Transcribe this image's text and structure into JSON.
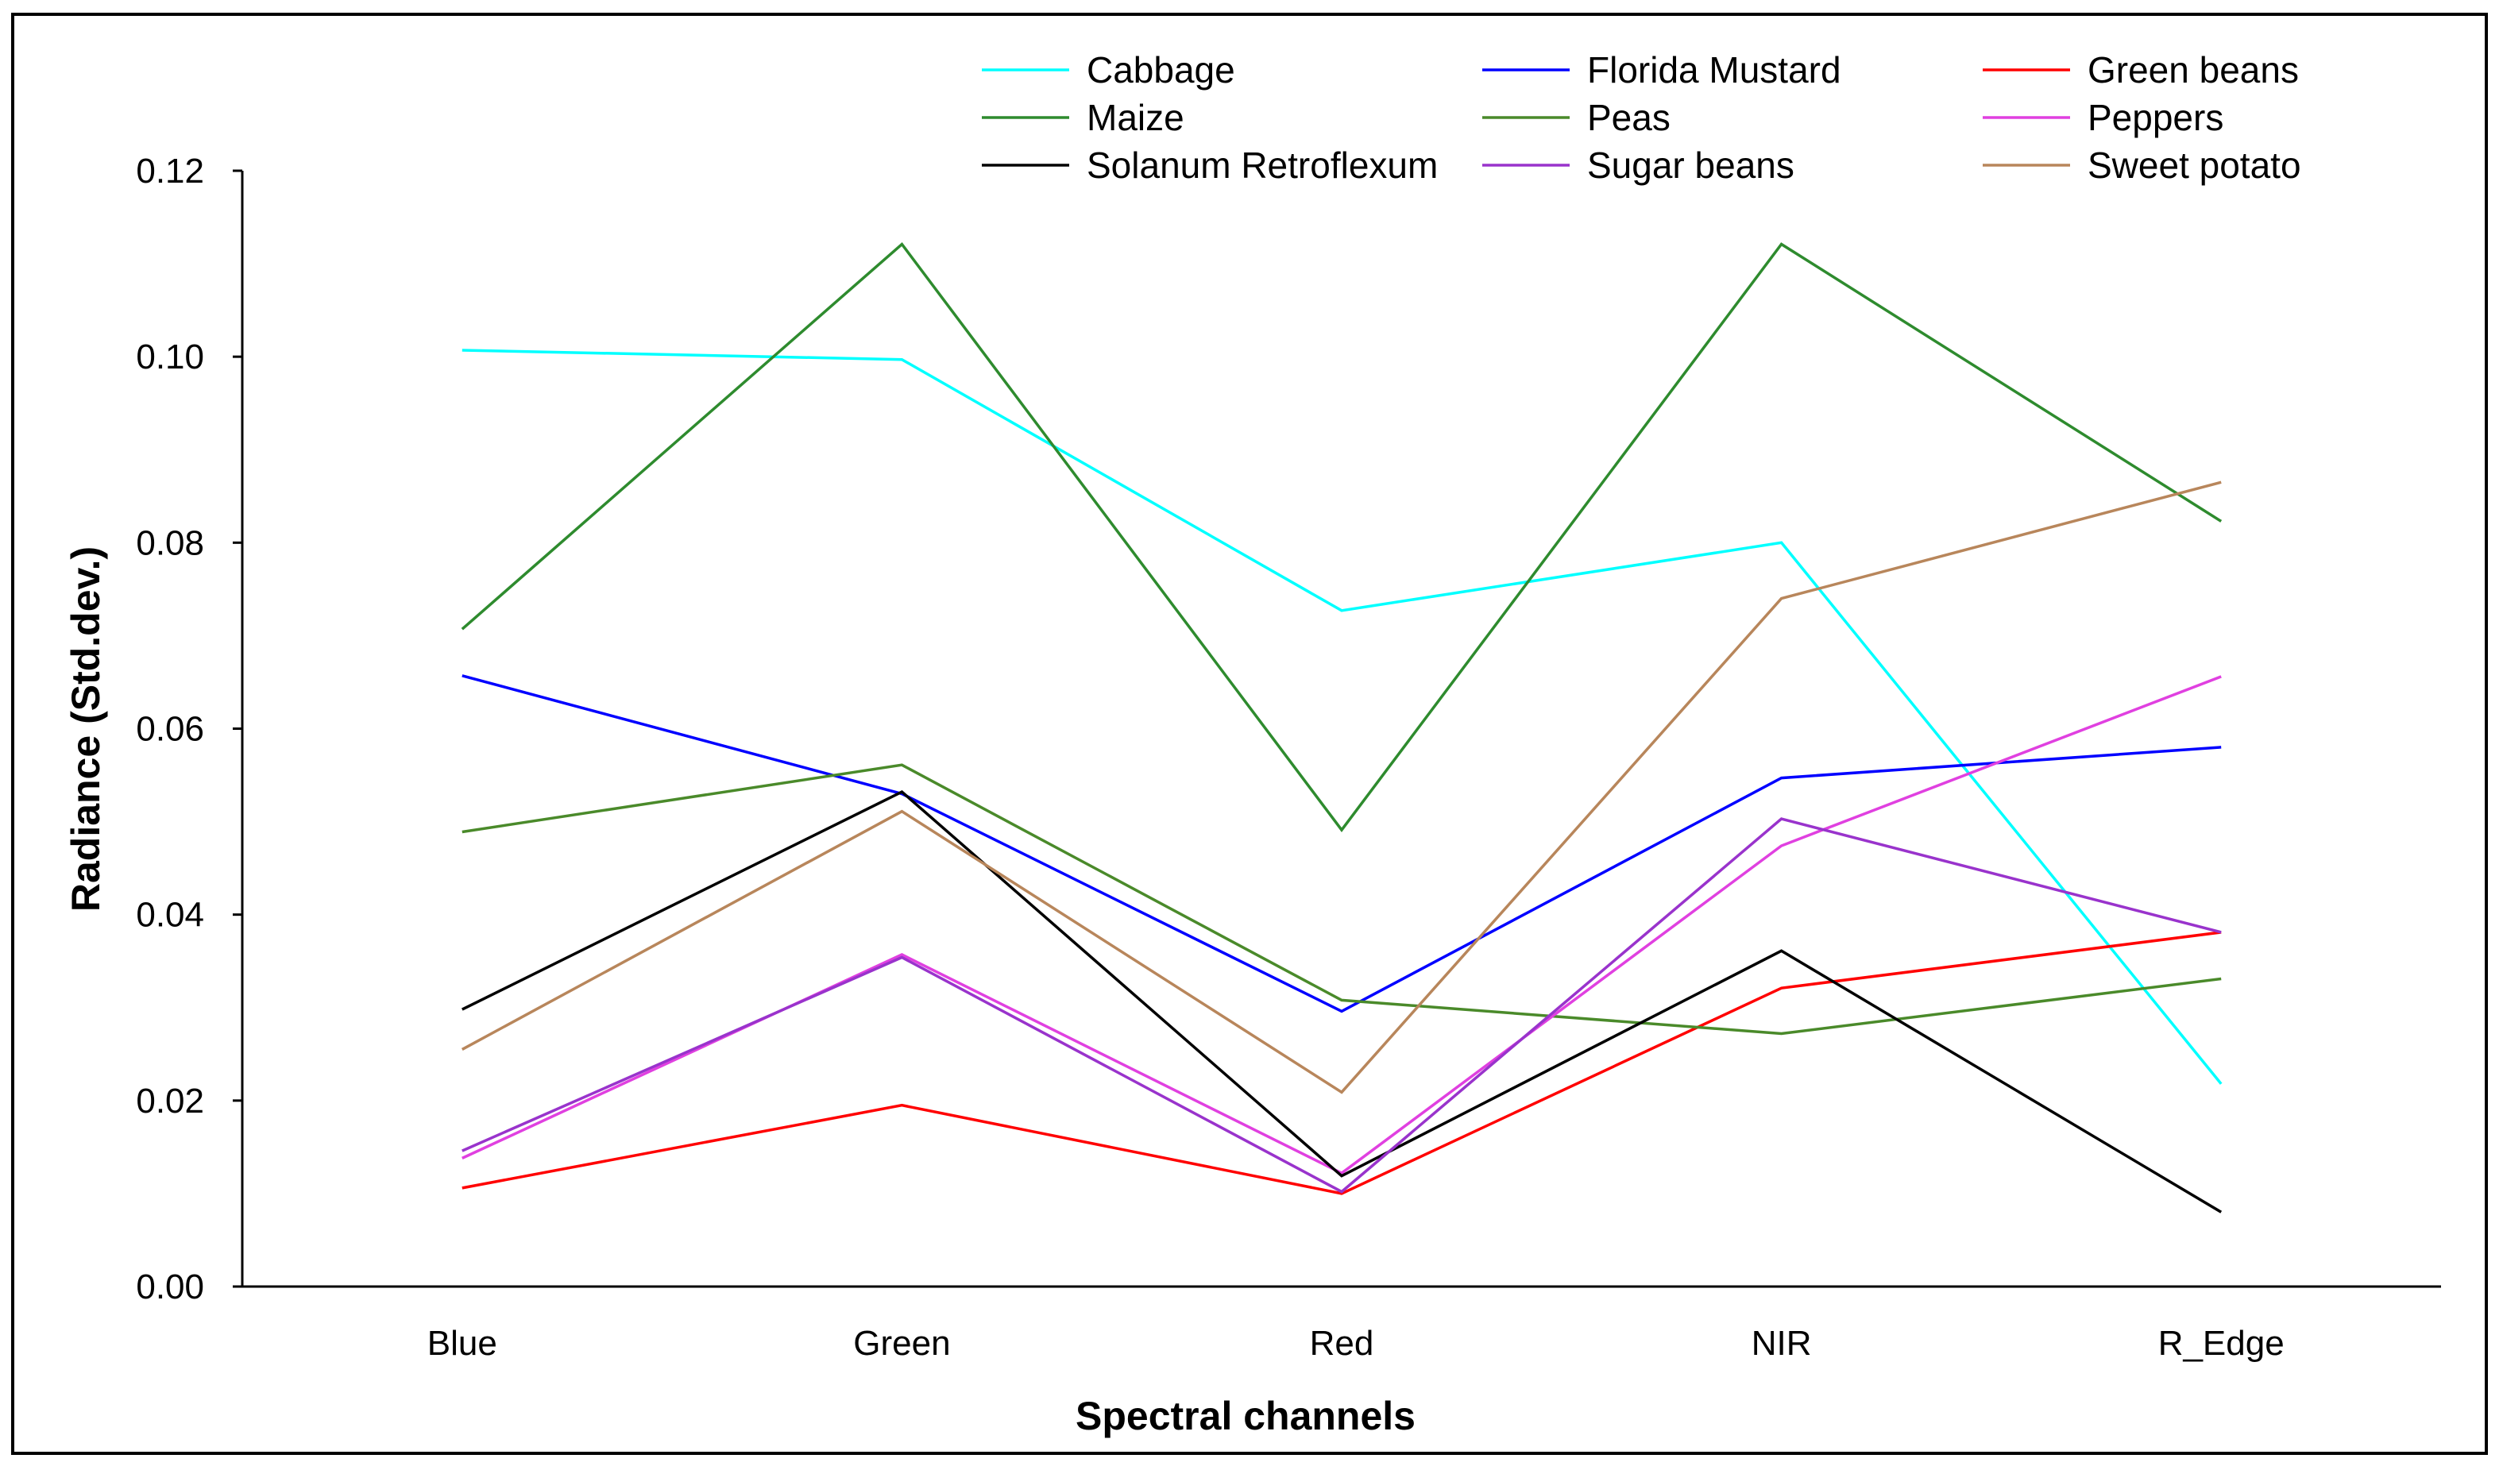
{
  "chart_data": {
    "type": "line",
    "title": "",
    "xlabel": "Spectral channels",
    "ylabel": "Radiance (Std.dev.)",
    "ylim": [
      0,
      0.12
    ],
    "y_ticks": [
      "0.00",
      "0.02",
      "0.04",
      "0.06",
      "0.08",
      "0.10",
      "0.12"
    ],
    "y_tick_values": [
      0,
      0.02,
      0.04,
      0.06,
      0.08,
      0.1,
      0.12
    ],
    "categories": [
      "Blue",
      "Green",
      "Red",
      "NIR",
      "R_Edge"
    ],
    "legend_position": "top",
    "grid": false,
    "series": [
      {
        "name": "Cabbage",
        "color": "#00ffff",
        "values": [
          0.1007,
          0.0997,
          0.0727,
          0.08,
          0.0218
        ]
      },
      {
        "name": "Florida Mustard",
        "color": "#0000ff",
        "values": [
          0.0657,
          0.053,
          0.0296,
          0.0547,
          0.058
        ]
      },
      {
        "name": "Green beans",
        "color": "#ff0000",
        "values": [
          0.0106,
          0.0195,
          0.01,
          0.0321,
          0.0381
        ]
      },
      {
        "name": "Maize",
        "color": "#2e8b2e",
        "values": [
          0.0707,
          0.1121,
          0.0491,
          0.1121,
          0.0823
        ]
      },
      {
        "name": "Peas",
        "color": "#4a8a2a",
        "values": [
          0.0489,
          0.0561,
          0.0308,
          0.0272,
          0.0331
        ]
      },
      {
        "name": "Peppers",
        "color": "#e040e0",
        "values": [
          0.0138,
          0.0357,
          0.0122,
          0.0474,
          0.0656
        ]
      },
      {
        "name": "Solanum Retroflexum",
        "color": "#000000",
        "values": [
          0.0298,
          0.0532,
          0.0119,
          0.0361,
          0.008
        ]
      },
      {
        "name": "Sugar beans",
        "color": "#9933cc",
        "values": [
          0.0146,
          0.0354,
          0.0102,
          0.0503,
          0.0381
        ]
      },
      {
        "name": "Sweet potato",
        "color": "#b8865b",
        "values": [
          0.0255,
          0.0511,
          0.0209,
          0.074,
          0.0865
        ]
      }
    ]
  }
}
